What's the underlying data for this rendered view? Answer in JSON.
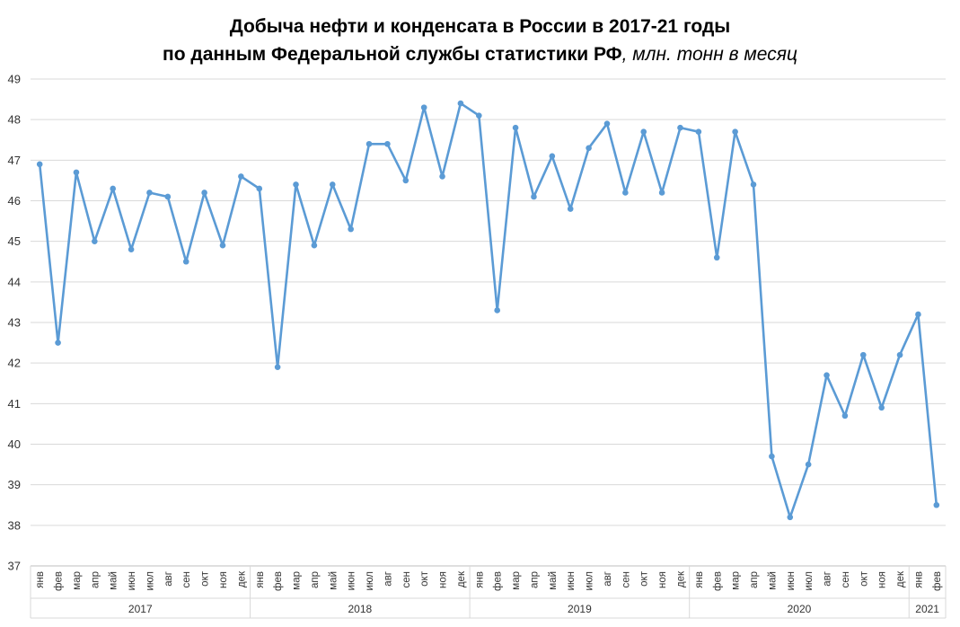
{
  "chart_data": {
    "type": "line",
    "title_line1": "Добыча нефти и конденсата в России в 2017-21 годы",
    "title_line2_bold": "по данным Федеральной службы статистики РФ",
    "title_line2_italic": ", млн. тонн в месяц",
    "ylim": [
      37,
      49
    ],
    "yticks": [
      37,
      38,
      39,
      40,
      41,
      42,
      43,
      44,
      45,
      46,
      47,
      48,
      49
    ],
    "grid": true,
    "color": "#5b9bd5",
    "months": [
      "янв",
      "фев",
      "мар",
      "апр",
      "май",
      "июн",
      "июл",
      "авг",
      "сен",
      "окт",
      "ноя",
      "дек",
      "янв",
      "фев",
      "мар",
      "апр",
      "май",
      "июн",
      "июл",
      "авг",
      "сен",
      "окт",
      "ноя",
      "дек",
      "янв",
      "фев",
      "мар",
      "апр",
      "май",
      "июн",
      "июл",
      "авг",
      "сен",
      "окт",
      "ноя",
      "дек",
      "янв",
      "фев",
      "мар",
      "апр",
      "май",
      "июн",
      "июл",
      "авг",
      "сен",
      "окт",
      "ноя",
      "дек",
      "янв",
      "фев"
    ],
    "years": [
      {
        "label": "2017",
        "count": 12
      },
      {
        "label": "2018",
        "count": 12
      },
      {
        "label": "2019",
        "count": 12
      },
      {
        "label": "2020",
        "count": 12
      },
      {
        "label": "2021",
        "count": 2
      }
    ],
    "values": [
      46.9,
      42.5,
      46.7,
      45.0,
      46.3,
      44.8,
      46.2,
      46.1,
      44.5,
      46.2,
      44.9,
      46.6,
      46.3,
      41.9,
      46.4,
      44.9,
      46.4,
      45.3,
      47.4,
      47.4,
      46.5,
      48.3,
      46.6,
      48.4,
      48.1,
      43.3,
      47.8,
      46.1,
      47.1,
      45.8,
      47.3,
      47.9,
      46.2,
      47.7,
      46.2,
      47.8,
      47.7,
      44.6,
      47.7,
      46.4,
      39.7,
      38.2,
      39.5,
      41.7,
      40.7,
      42.2,
      40.9,
      42.2,
      43.2,
      38.5
    ]
  }
}
